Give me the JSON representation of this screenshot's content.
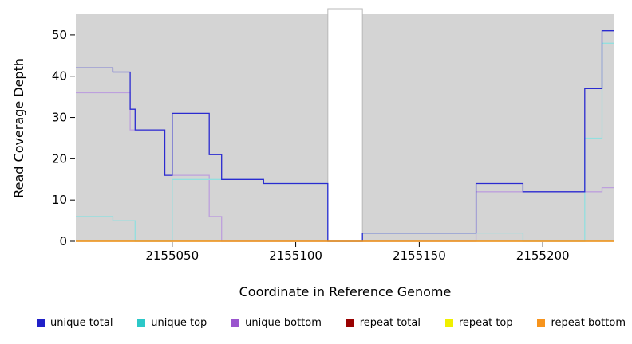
{
  "figure": {
    "xlabel": "Coordinate in Reference Genome",
    "ylabel": "Read Coverage Depth"
  },
  "chart_data": {
    "type": "line",
    "subtype": "step-coverage",
    "title": "",
    "xlabel": "Coordinate in Reference Genome",
    "ylabel": "Read Coverage Depth",
    "xlim": [
      2155011,
      2155229
    ],
    "ylim": [
      0,
      55
    ],
    "x_ticks": [
      2155050,
      2155100,
      2155150,
      2155200
    ],
    "y_ticks": [
      0,
      10,
      20,
      30,
      40,
      50
    ],
    "plot_bg": "#d4d4d4",
    "gap_region": {
      "x_start": 2155113,
      "x_end": 2155127
    },
    "legend_position": "bottom",
    "grid": false,
    "series": [
      {
        "name": "unique bottom",
        "color": "#bda0dd",
        "legend_color": "#9a55ce",
        "legend_order": 3,
        "points": [
          [
            2155011,
            36
          ],
          [
            2155033,
            27
          ],
          [
            2155047,
            16
          ],
          [
            2155065,
            6
          ],
          [
            2155070,
            0
          ],
          [
            2155127,
            0
          ],
          [
            2155173,
            12
          ],
          [
            2155224,
            13
          ]
        ]
      },
      {
        "name": "unique top",
        "color": "#93dfdf",
        "legend_color": "#2cc8c8",
        "legend_order": 2,
        "points": [
          [
            2155011,
            6
          ],
          [
            2155026,
            5
          ],
          [
            2155035,
            0
          ],
          [
            2155050,
            15
          ],
          [
            2155087,
            14
          ],
          [
            2155113,
            0
          ],
          [
            2155127,
            2
          ],
          [
            2155192,
            0
          ],
          [
            2155217,
            25
          ],
          [
            2155224,
            48
          ]
        ]
      },
      {
        "name": "unique total",
        "color": "#2b2bd0",
        "legend_color": "#2020c8",
        "legend_order": 1,
        "points": [
          [
            2155011,
            42
          ],
          [
            2155026,
            41
          ],
          [
            2155033,
            32
          ],
          [
            2155035,
            27
          ],
          [
            2155047,
            16
          ],
          [
            2155050,
            31
          ],
          [
            2155065,
            21
          ],
          [
            2155070,
            15
          ],
          [
            2155087,
            14
          ],
          [
            2155113,
            0
          ],
          [
            2155127,
            2
          ],
          [
            2155173,
            14
          ],
          [
            2155192,
            12
          ],
          [
            2155217,
            37
          ],
          [
            2155224,
            51
          ]
        ]
      },
      {
        "name": "repeat total",
        "color": "#990000",
        "legend_color": "#990000",
        "legend_order": 4,
        "points": [
          [
            2155011,
            0
          ]
        ]
      },
      {
        "name": "repeat top",
        "color": "#f0f000",
        "legend_color": "#f0f000",
        "legend_order": 5,
        "points": [
          [
            2155011,
            0
          ]
        ]
      },
      {
        "name": "repeat bottom",
        "color": "#f7941d",
        "legend_color": "#f7941d",
        "legend_order": 6,
        "points": [
          [
            2155011,
            0
          ]
        ]
      }
    ]
  }
}
